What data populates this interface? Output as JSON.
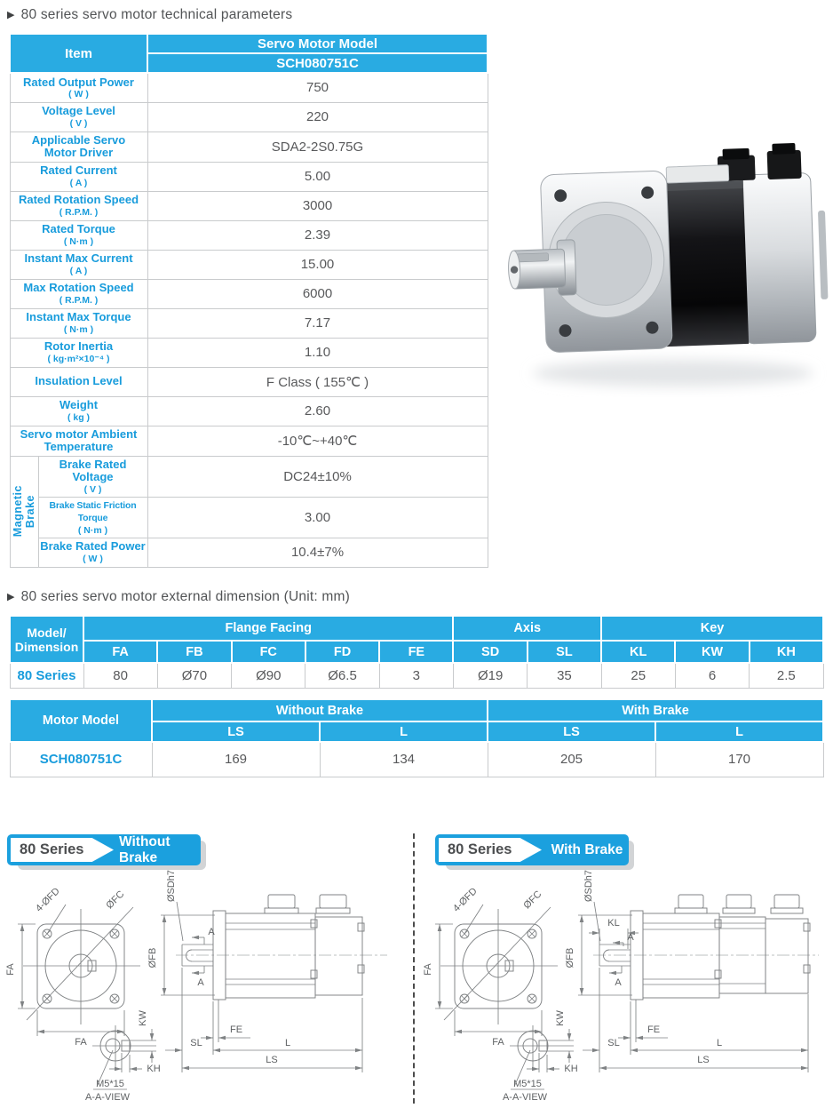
{
  "sections": {
    "bullet": "▶",
    "title1": "80 series servo motor technical parameters",
    "title2": "80 series servo motor external dimension (Unit: mm)"
  },
  "colors": {
    "accent_blue": "#29abe2",
    "label_blue": "#189cdc",
    "value_gray": "#58595b"
  },
  "tech_table": {
    "header_item": "Item",
    "header_model": "Servo Motor Model",
    "header_model_value": "SCH080751C",
    "rows": [
      {
        "label": "Rated Output Power",
        "unit": "( W )",
        "value": "750"
      },
      {
        "label": "Voltage Level",
        "unit": "( V )",
        "value": "220"
      },
      {
        "label": "Applicable Servo",
        "label2": "Motor Driver",
        "value": "SDA2-2S0.75G"
      },
      {
        "label": "Rated Current",
        "unit": "( A )",
        "value": "5.00"
      },
      {
        "label": "Rated Rotation Speed",
        "unit": "( R.P.M. )",
        "value": "3000"
      },
      {
        "label": "Rated Torque",
        "unit": "( N·m )",
        "value": "2.39"
      },
      {
        "label": "Instant Max Current",
        "unit": "( A )",
        "value": "15.00"
      },
      {
        "label": "Max Rotation Speed",
        "unit": "( R.P.M. )",
        "value": "6000"
      },
      {
        "label": "Instant Max Torque",
        "unit": "( N·m )",
        "value": "7.17"
      },
      {
        "label": "Rotor Inertia",
        "unit": "( kg·m²×10⁻⁴ )",
        "value": "1.10"
      },
      {
        "label": "Insulation Level",
        "value": "F Class ( 155℃ )"
      },
      {
        "label": "Weight",
        "unit": "( kg )",
        "value": "2.60"
      },
      {
        "label": "Servo motor Ambient",
        "label2": "Temperature",
        "value": "-10℃~+40℃"
      }
    ],
    "brake_group": [
      "Magnetic",
      "Brake"
    ],
    "brake_rows": [
      {
        "label": "Brake Rated Voltage",
        "unit": "( V )",
        "value": "DC24±10%"
      },
      {
        "label": "Brake Static Friction Torque",
        "unit": "( N·m )",
        "value": "3.00",
        "small": true
      },
      {
        "label": "Brake Rated Power",
        "unit": "( W )",
        "value": "10.4±7%"
      }
    ]
  },
  "dim_table": {
    "corner_line1": "Model/",
    "corner_line2": "Dimension",
    "groups": [
      {
        "label": "Flange Facing"
      },
      {
        "label": "Axis"
      },
      {
        "label": "Key"
      }
    ],
    "cols": [
      "FA",
      "FB",
      "FC",
      "FD",
      "FE",
      "SD",
      "SL",
      "KL",
      "KW",
      "KH"
    ],
    "row_label": "80 Series",
    "values": [
      "80",
      "Ø70",
      "Ø90",
      "Ø6.5",
      "3",
      "Ø19",
      "35",
      "25",
      "6",
      "2.5"
    ]
  },
  "brake_table": {
    "corner": "Motor Model",
    "groups": [
      {
        "label": "Without Brake"
      },
      {
        "label": "With Brake"
      }
    ],
    "cols": [
      "LS",
      "L",
      "LS",
      "L"
    ],
    "row_label": "SCH080751C",
    "values": [
      "169",
      "134",
      "205",
      "170"
    ]
  },
  "drawings": {
    "left": {
      "series": "80 Series",
      "type": "Without Brake"
    },
    "right": {
      "series": "80 Series",
      "type": "With Brake"
    },
    "labels": {
      "fd": "4-ØFD",
      "fc": "ØFC",
      "sdh7": "ØSDh7",
      "fb": "ØFB",
      "fa": "FA",
      "a": "A",
      "kw": "KW",
      "kh": "KH",
      "m5": "M5*15",
      "view": "A-A-VIEW",
      "fe": "FE",
      "sl": "SL",
      "l": "L",
      "ls": "LS",
      "kl": "KL"
    }
  }
}
